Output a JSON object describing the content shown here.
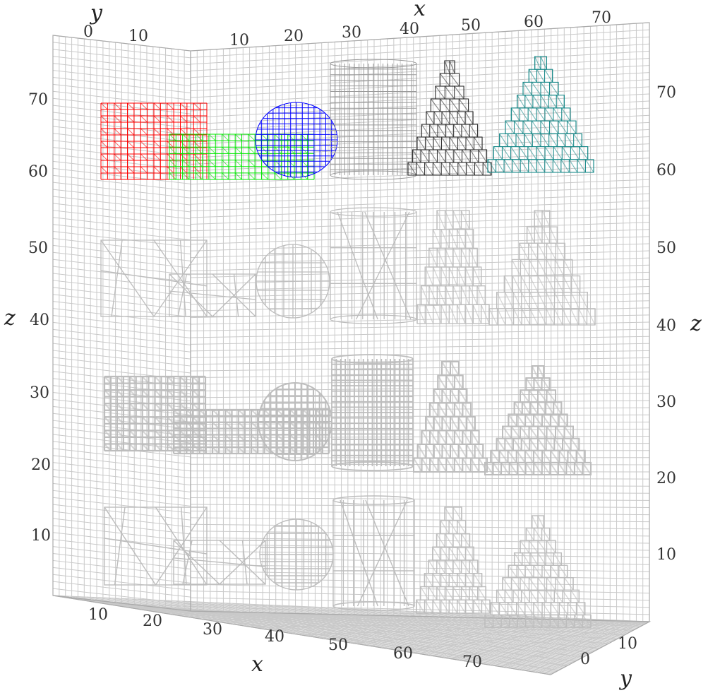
{
  "axes": {
    "x_label": "x",
    "y_label": "y",
    "z_label": "z",
    "x_ticks_bottom": [
      "10",
      "20",
      "30",
      "40",
      "50",
      "60",
      "70"
    ],
    "x_ticks_top": [
      "10",
      "20",
      "30",
      "40",
      "50",
      "60",
      "70"
    ],
    "y_ticks_top": [
      "0",
      "10"
    ],
    "y_ticks_bottom_right": [
      "0",
      "10"
    ],
    "z_ticks_left": [
      "10",
      "20",
      "30",
      "40",
      "50",
      "60",
      "70"
    ],
    "z_ticks_right": [
      "10",
      "20",
      "30",
      "40",
      "50",
      "60",
      "70"
    ]
  },
  "colors": {
    "background": "#ffffff",
    "grid": "#c9c9c9",
    "wireframe_gray": "#bdbdbd",
    "cube": "#ff0000",
    "cuboid": "#00e600",
    "sphere": "#0000ff",
    "cylinder": "#999999",
    "cone": "#333333",
    "stepped_pyramid": "#1a8a8a"
  },
  "rows": [
    {
      "style": "colored-voxel",
      "shapes": [
        "cube-icon",
        "cuboid-icon",
        "sphere-icon",
        "cylinder-icon",
        "cone-icon",
        "pyramid-icon"
      ]
    },
    {
      "style": "coarse-mesh",
      "shapes": [
        "cube-icon",
        "cuboid-icon",
        "sphere-icon",
        "cylinder-icon",
        "cone-icon",
        "pyramid-icon"
      ]
    },
    {
      "style": "dense-mesh",
      "shapes": [
        "cube-icon",
        "cuboid-icon",
        "sphere-icon",
        "cylinder-icon",
        "cone-icon",
        "pyramid-icon"
      ]
    },
    {
      "style": "triangulated-mesh",
      "shapes": [
        "cube-icon",
        "cuboid-icon",
        "sphere-icon",
        "cylinder-icon",
        "cone-icon",
        "pyramid-icon"
      ]
    }
  ]
}
